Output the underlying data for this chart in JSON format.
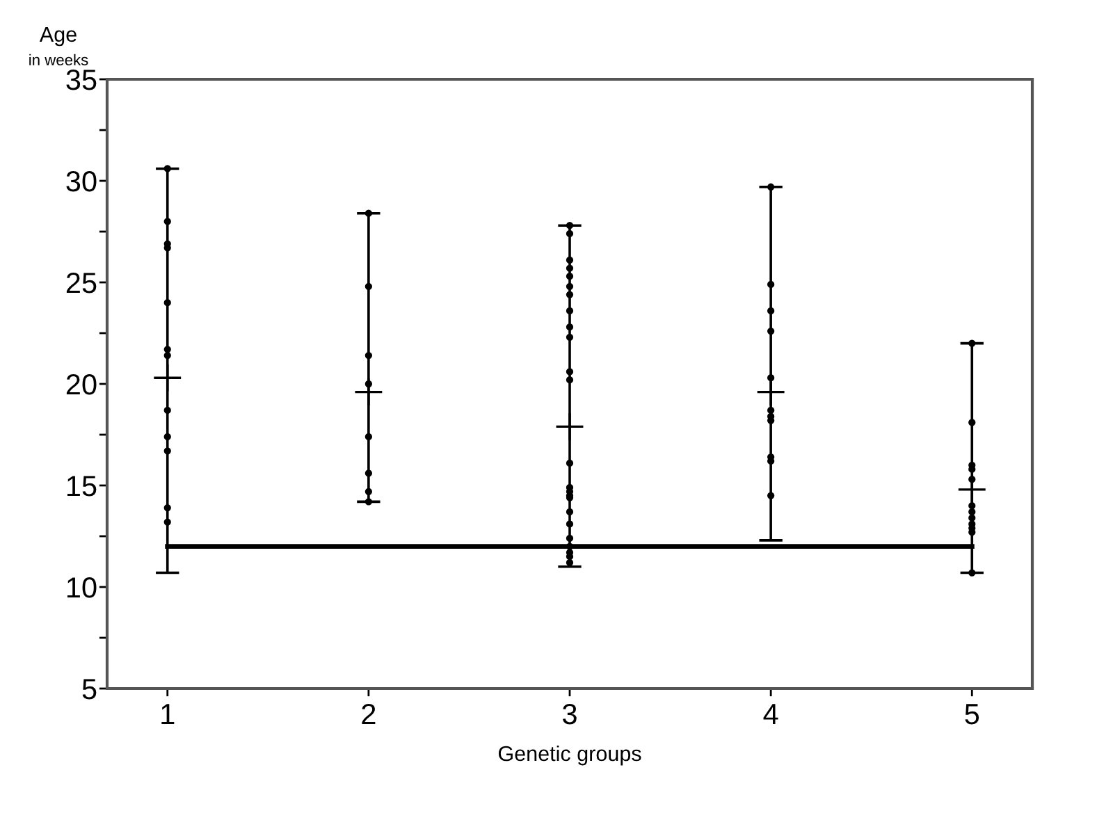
{
  "chart_data": {
    "type": "scatter",
    "xlabel": "Genetic groups",
    "ylabel": "Age\nin weeks",
    "xlim": [
      0.7,
      5.3
    ],
    "xticks": [
      1,
      2,
      3,
      4,
      5
    ],
    "ylim": [
      5,
      35
    ],
    "yticks": [
      5,
      {
        "value": 7.5,
        "label": null
      },
      10,
      {
        "value": 12.5,
        "label": null
      },
      15,
      {
        "value": 17.5,
        "label": null
      },
      20,
      {
        "value": 22.5,
        "label": null
      },
      25,
      {
        "value": 27.5,
        "label": null
      },
      30,
      {
        "value": 32.5,
        "label": null
      },
      35
    ],
    "grid": false,
    "legend": false,
    "series": [
      {
        "marker": "circle",
        "color": "#000000",
        "x": [
          1,
          1,
          1,
          1,
          1,
          1,
          1,
          1,
          1,
          1,
          1,
          1,
          2,
          2,
          2,
          2,
          2,
          2,
          2,
          2,
          3,
          3,
          3,
          3,
          3,
          3,
          3,
          3,
          3,
          3,
          3,
          3,
          3,
          3,
          3,
          3,
          3,
          3,
          3,
          3,
          3,
          3,
          3,
          3,
          4,
          4,
          4,
          4,
          4,
          4,
          4,
          4,
          4,
          4,
          4,
          5,
          5,
          5,
          5,
          5,
          5,
          5,
          5,
          5,
          5,
          5,
          5
        ],
        "values": [
          30.6,
          28.0,
          26.9,
          26.7,
          24.0,
          21.7,
          21.4,
          18.7,
          17.4,
          16.7,
          13.9,
          13.2,
          28.4,
          24.8,
          21.4,
          20.0,
          17.4,
          15.6,
          14.7,
          14.2,
          27.8,
          27.4,
          26.1,
          25.7,
          25.3,
          24.8,
          24.4,
          23.6,
          22.8,
          22.3,
          20.6,
          20.2,
          16.1,
          14.9,
          14.7,
          14.5,
          14.4,
          13.7,
          13.1,
          12.4,
          12.0,
          11.7,
          11.5,
          11.2,
          29.7,
          24.9,
          23.6,
          22.6,
          20.3,
          18.7,
          18.4,
          18.2,
          16.4,
          16.2,
          14.5,
          22.0,
          18.1,
          16.0,
          15.8,
          15.3,
          14.0,
          13.7,
          13.4,
          13.1,
          12.9,
          12.7,
          10.7
        ]
      },
      {
        "marker": "cross",
        "color": "#000000",
        "x": [
          1,
          2,
          3,
          4,
          5
        ],
        "values": [
          20.3,
          19.6,
          17.9,
          19.6,
          14.8
        ],
        "errors": [
          [
            10.7,
            30.6
          ],
          [
            14.2,
            28.4
          ],
          [
            11.0,
            27.8
          ],
          [
            12.3,
            29.7
          ],
          [
            10.7,
            22.0
          ]
        ]
      },
      {
        "type": "line",
        "marker": "none",
        "line_style": "solid",
        "color": "#000000",
        "x": [
          1,
          5
        ],
        "values": [
          12,
          12
        ]
      }
    ]
  }
}
